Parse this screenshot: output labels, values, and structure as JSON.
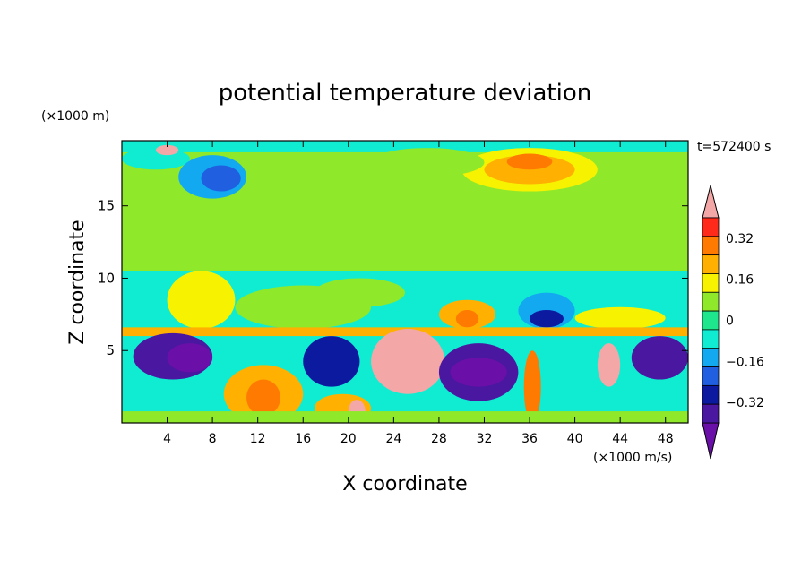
{
  "chart_data": {
    "type": "heatmap",
    "title": "potential temperature deviation",
    "xlabel": "X coordinate",
    "ylabel": "Z coordinate",
    "x_unit": "(×1000 m/s)",
    "y_unit": "(×1000 m)",
    "time_label": "t=572400 s",
    "xlim": [
      0,
      50
    ],
    "ylim": [
      0,
      19.5
    ],
    "x_ticks": [
      4,
      8,
      12,
      16,
      20,
      24,
      28,
      32,
      36,
      40,
      44,
      48
    ],
    "y_ticks": [
      5,
      10,
      15
    ],
    "colorbar": {
      "ticks": [
        0.32,
        0.16,
        0,
        -0.16,
        -0.32
      ],
      "tick_labels": [
        "0.32",
        "0.16",
        "0",
        "−0.16",
        "−0.32"
      ],
      "levels": [
        -0.48,
        -0.4,
        -0.32,
        -0.24,
        -0.16,
        -0.08,
        0,
        0.08,
        0.16,
        0.24,
        0.32,
        0.4,
        0.48
      ],
      "colors": [
        "#6a0fa8",
        "#4a17a0",
        "#0c1aa0",
        "#1f5fe0",
        "#13a9f0",
        "#10ecd2",
        "#1ee68c",
        "#8fe82a",
        "#f7f200",
        "#ffb000",
        "#ff7a00",
        "#ff2a1a",
        "#f4a7a7"
      ]
    },
    "fields": [
      {
        "x": [
          0,
          50
        ],
        "y": [
          0,
          19.5
        ],
        "value": 0.05
      },
      {
        "x": [
          0,
          50
        ],
        "y": [
          18.7,
          19.5
        ],
        "value": -0.08
      },
      {
        "x": [
          0,
          50
        ],
        "y": [
          6.6,
          10.5
        ],
        "value": -0.05
      },
      {
        "x": [
          0,
          50
        ],
        "y": [
          0,
          6.6
        ],
        "value": -0.1
      },
      {
        "x": [
          0,
          6
        ],
        "y": [
          17.5,
          19
        ],
        "value": -0.12
      },
      {
        "x": [
          5,
          11
        ],
        "y": [
          15.5,
          18.5
        ],
        "value": -0.2
      },
      {
        "x": [
          7,
          10.5
        ],
        "y": [
          16,
          17.8
        ],
        "value": -0.25
      },
      {
        "x": [
          3,
          5
        ],
        "y": [
          18.5,
          19.2
        ],
        "value": 0.48
      },
      {
        "x": [
          30,
          42
        ],
        "y": [
          16,
          19
        ],
        "value": 0.18
      },
      {
        "x": [
          32,
          40
        ],
        "y": [
          16.5,
          18.5
        ],
        "value": 0.22
      },
      {
        "x": [
          34,
          38
        ],
        "y": [
          17.5,
          18.6
        ],
        "value": 0.3
      },
      {
        "x": [
          22,
          32
        ],
        "y": [
          17,
          19
        ],
        "value": 0.1
      },
      {
        "x": [
          17,
          25
        ],
        "y": [
          8,
          10
        ],
        "value": 0.08
      },
      {
        "x": [
          4,
          10
        ],
        "y": [
          6.5,
          10.5
        ],
        "value": 0.16
      },
      {
        "x": [
          10,
          22
        ],
        "y": [
          6.5,
          9.5
        ],
        "value": 0.1
      },
      {
        "x": [
          28,
          33
        ],
        "y": [
          6.5,
          8.5
        ],
        "value": 0.22
      },
      {
        "x": [
          29.5,
          31.5
        ],
        "y": [
          6.6,
          7.8
        ],
        "value": 0.32
      },
      {
        "x": [
          35,
          40
        ],
        "y": [
          6.5,
          9
        ],
        "value": -0.2
      },
      {
        "x": [
          36,
          39
        ],
        "y": [
          6.6,
          7.8
        ],
        "value": -0.3
      },
      {
        "x": [
          40,
          48
        ],
        "y": [
          6.5,
          8
        ],
        "value": 0.16
      },
      {
        "x": [
          0,
          50
        ],
        "y": [
          6.0,
          6.6
        ],
        "value": 0.2
      },
      {
        "x": [
          1,
          8
        ],
        "y": [
          3,
          6.2
        ],
        "value": -0.4
      },
      {
        "x": [
          4,
          8
        ],
        "y": [
          3.5,
          5.5
        ],
        "value": -0.46
      },
      {
        "x": [
          9,
          16
        ],
        "y": [
          0,
          4
        ],
        "value": 0.24
      },
      {
        "x": [
          11,
          14
        ],
        "y": [
          0.5,
          3
        ],
        "value": 0.34
      },
      {
        "x": [
          16,
          21
        ],
        "y": [
          2.5,
          6
        ],
        "value": -0.36
      },
      {
        "x": [
          17,
          22
        ],
        "y": [
          0,
          2
        ],
        "value": 0.26
      },
      {
        "x": [
          20,
          21.5
        ],
        "y": [
          0,
          1.6
        ],
        "value": 0.46
      },
      {
        "x": [
          22,
          28.5
        ],
        "y": [
          2,
          6.5
        ],
        "value": 0.48
      },
      {
        "x": [
          28,
          35
        ],
        "y": [
          1.5,
          5.5
        ],
        "value": -0.4
      },
      {
        "x": [
          29,
          34
        ],
        "y": [
          2.5,
          4.5
        ],
        "value": -0.46
      },
      {
        "x": [
          35.5,
          37
        ],
        "y": [
          0,
          5
        ],
        "value": 0.3
      },
      {
        "x": [
          42,
          44
        ],
        "y": [
          2.5,
          5.5
        ],
        "value": 0.44
      },
      {
        "x": [
          45,
          50
        ],
        "y": [
          3,
          6
        ],
        "value": -0.4
      },
      {
        "x": [
          0,
          50
        ],
        "y": [
          0,
          0.8
        ],
        "value": 0.04
      }
    ]
  }
}
